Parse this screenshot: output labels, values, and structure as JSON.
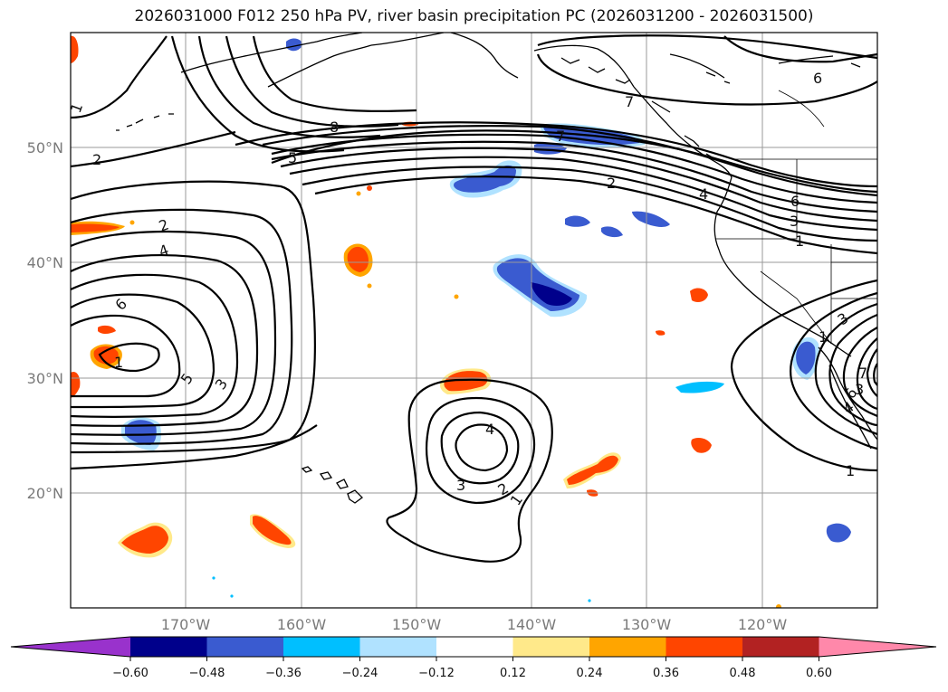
{
  "title": "2026031000 F012 250 hPa PV, river basin precipitation PC (2026031200 - 2026031500)",
  "lat_labels": [
    "20°N",
    "30°N",
    "40°N",
    "50°N"
  ],
  "lon_labels": [
    "170°W",
    "160°W",
    "150°W",
    "140°W",
    "130°W",
    "120°W"
  ],
  "colorbar": {
    "colors": [
      "#9932cc",
      "#00008b",
      "#3a5bd0",
      "#00bfff",
      "#b0e2ff",
      "#ffffff",
      "#ffe98a",
      "#ffa500",
      "#ff4500",
      "#b22222",
      "#ff88aa"
    ],
    "ticks": [
      "−0.60",
      "−0.48",
      "−0.36",
      "−0.24",
      "−0.12",
      "0.12",
      "0.24",
      "0.36",
      "0.48",
      "0.60"
    ]
  },
  "pv_contour_labels": [
    "1",
    "2",
    "2",
    "3",
    "3",
    "4",
    "4",
    "5",
    "5",
    "6",
    "6",
    "6",
    "7",
    "7",
    "8",
    "1",
    "2",
    "3",
    "4",
    "1",
    "1",
    "3",
    "2",
    "1",
    "3",
    "1",
    "6",
    "7",
    "4"
  ]
}
